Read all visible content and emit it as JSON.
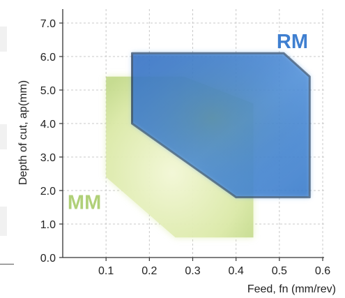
{
  "chart_data": {
    "type": "area",
    "title": "",
    "xlabel": "Feed, fn (mm/rev)",
    "ylabel": "Depth of cut, ap(mm)",
    "xlim": [
      0,
      0.6
    ],
    "ylim": [
      0,
      7.0
    ],
    "x_ticks": [
      "0.1",
      "0.2",
      "0.3",
      "0.4",
      "0.5",
      "0.6"
    ],
    "y_ticks": [
      "0.0",
      "1.0",
      "2.0",
      "3.0",
      "4.0",
      "5.0",
      "6.0",
      "7.0"
    ],
    "grid": true,
    "series": [
      {
        "name": "MM",
        "color": "#c9df8a",
        "label_color": "#a8cc6a",
        "points": [
          [
            0.1,
            5.4
          ],
          [
            0.28,
            5.4
          ],
          [
            0.44,
            4.6
          ],
          [
            0.44,
            0.6
          ],
          [
            0.26,
            0.6
          ],
          [
            0.1,
            2.4
          ]
        ]
      },
      {
        "name": "RM",
        "color": "#2f73c6",
        "label_color": "#3f7fd0",
        "points": [
          [
            0.16,
            6.1
          ],
          [
            0.51,
            6.1
          ],
          [
            0.57,
            5.4
          ],
          [
            0.57,
            1.8
          ],
          [
            0.4,
            1.8
          ],
          [
            0.16,
            4.0
          ]
        ]
      }
    ]
  }
}
